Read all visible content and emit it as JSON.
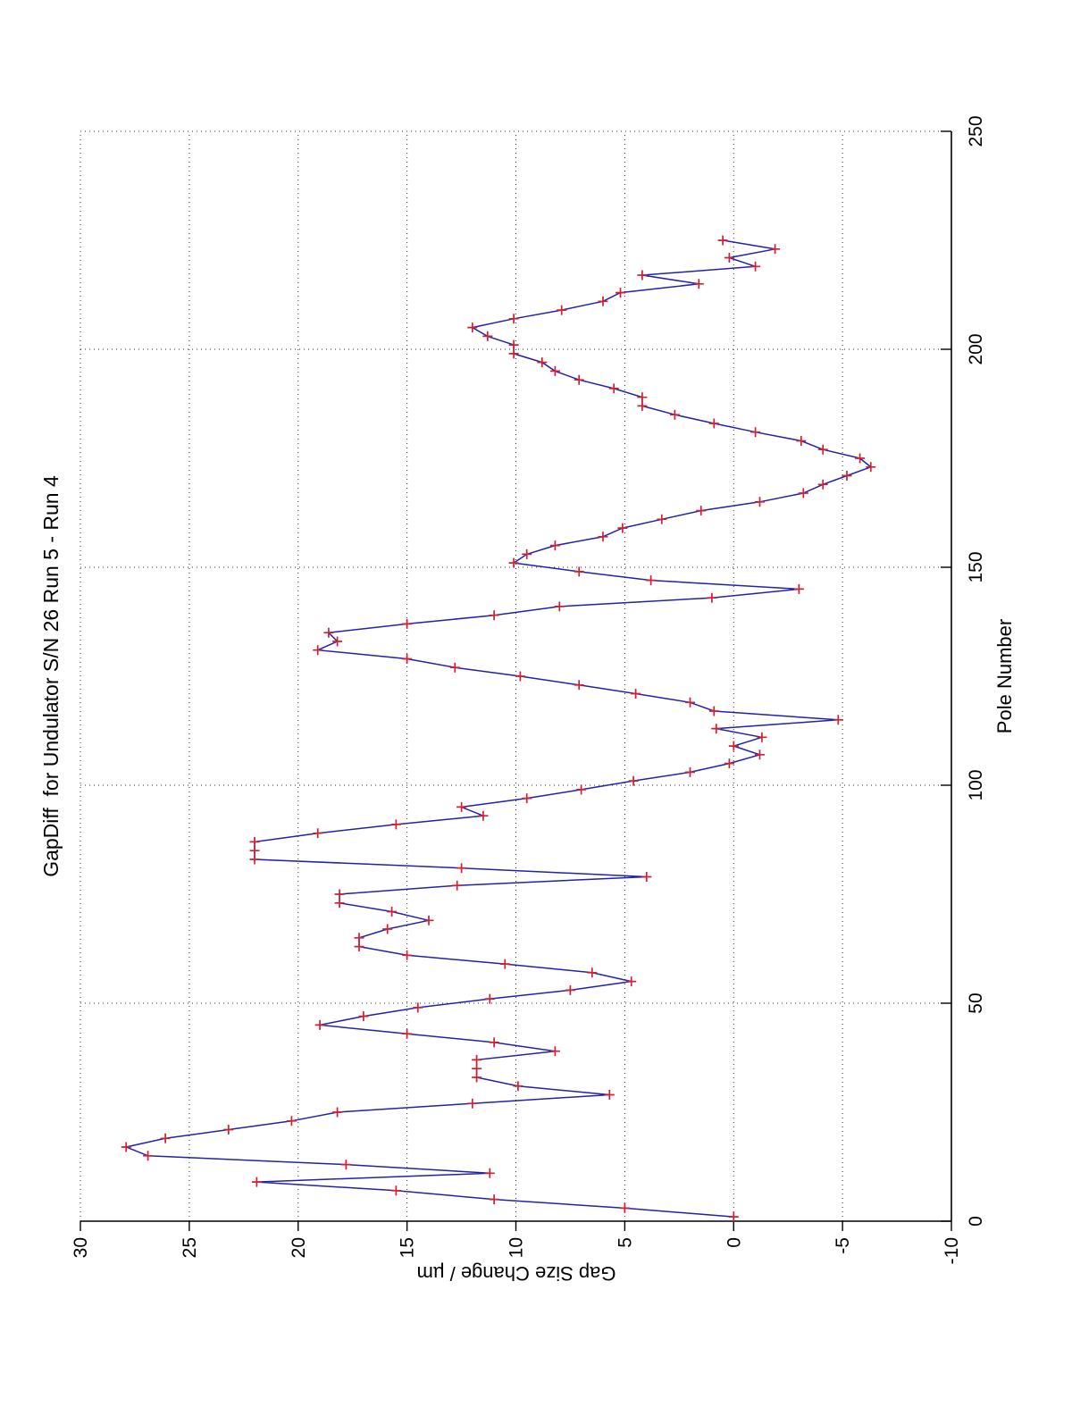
{
  "figure": {
    "rotation": "90deg counter-clockwise (landscape plot printed on portrait page)"
  },
  "chart_data": {
    "type": "line",
    "title": "GapDiff  for Undulator S/N 26 Run 5 - Run 4",
    "xlabel": "Pole Number",
    "ylabel": "Gap Size Change / µm",
    "xlim": [
      0,
      250
    ],
    "ylim": [
      -10,
      30
    ],
    "xticks": [
      0,
      50,
      100,
      150,
      200,
      250
    ],
    "yticks": [
      -10,
      -5,
      0,
      5,
      10,
      15,
      20,
      25,
      30
    ],
    "grid": true,
    "grid_style": "dotted",
    "legend": "none",
    "line_color": "#2222AA",
    "marker": "+",
    "marker_color": "#CC2233",
    "series": [
      {
        "name": "GapDiff",
        "x": [
          1,
          3,
          5,
          7,
          9,
          11,
          13,
          15,
          17,
          19,
          21,
          23,
          25,
          27,
          29,
          31,
          33,
          35,
          37,
          39,
          41,
          43,
          45,
          47,
          49,
          51,
          53,
          55,
          57,
          59,
          61,
          63,
          65,
          67,
          69,
          71,
          73,
          75,
          77,
          79,
          81,
          83,
          85,
          87,
          89,
          91,
          93,
          95,
          97,
          99,
          101,
          103,
          105,
          107,
          109,
          111,
          113,
          115,
          117,
          119,
          121,
          123,
          125,
          127,
          129,
          131,
          133,
          135,
          137,
          139,
          141,
          143,
          145,
          147,
          149,
          151,
          153,
          155,
          157,
          159,
          161,
          163,
          165,
          167,
          169,
          171,
          173,
          175,
          177,
          179,
          181,
          183,
          185,
          187,
          189,
          191,
          193,
          195,
          197,
          199,
          201,
          203,
          205,
          207,
          209,
          211,
          213,
          215,
          217,
          219,
          221,
          223,
          225
        ],
        "y": [
          0.0,
          5.0,
          11.0,
          15.5,
          21.9,
          11.2,
          17.8,
          26.9,
          27.9,
          26.1,
          23.2,
          20.3,
          18.2,
          12.0,
          5.7,
          9.9,
          11.8,
          11.8,
          11.8,
          8.2,
          11.0,
          15.0,
          19.0,
          17.0,
          14.5,
          11.2,
          7.5,
          4.7,
          6.5,
          10.5,
          15.0,
          17.2,
          17.2,
          15.9,
          14.0,
          15.7,
          18.1,
          18.1,
          12.7,
          4.0,
          12.5,
          22.0,
          22.0,
          22.0,
          19.1,
          15.5,
          11.5,
          12.5,
          9.5,
          7.0,
          4.6,
          2.0,
          0.2,
          -1.2,
          0.0,
          -1.3,
          0.8,
          -4.8,
          0.9,
          2.0,
          4.5,
          7.1,
          9.8,
          12.8,
          15.0,
          19.1,
          18.2,
          18.6,
          15.0,
          11.0,
          8.0,
          1.0,
          -3.0,
          3.8,
          7.1,
          10.1,
          9.5,
          8.2,
          6.0,
          5.1,
          3.3,
          1.5,
          -1.2,
          -3.2,
          -4.1,
          -5.2,
          -6.3,
          -5.8,
          -4.1,
          -3.1,
          -1.0,
          0.9,
          2.7,
          4.2,
          4.2,
          5.5,
          7.1,
          8.2,
          8.8,
          10.1,
          10.1,
          11.3,
          12.0,
          10.1,
          7.9,
          6.0,
          5.2,
          1.6,
          4.2,
          -1.0,
          0.2,
          -1.9,
          0.5
        ]
      }
    ]
  }
}
